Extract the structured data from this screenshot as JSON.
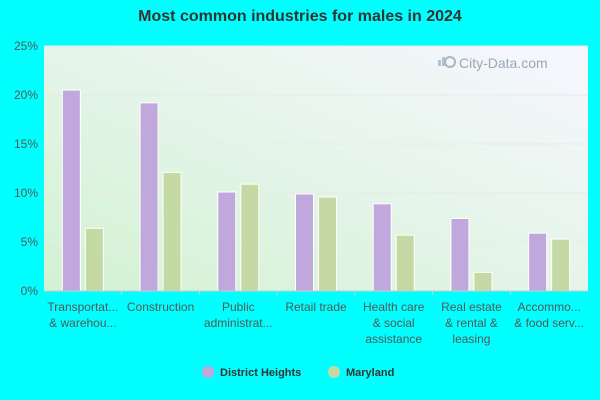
{
  "chart_data": {
    "type": "bar",
    "title": "Most common industries for males in 2024",
    "categories": [
      [
        "Transportat...",
        "& warehou..."
      ],
      [
        "Construction"
      ],
      [
        "Public",
        "administrat..."
      ],
      [
        "Retail trade"
      ],
      [
        "Health care",
        "& social",
        "assistance"
      ],
      [
        "Real estate",
        "& rental &",
        "leasing"
      ],
      [
        "Accommo...",
        "& food serv..."
      ]
    ],
    "series": [
      {
        "name": "District Heights",
        "color": "#c0a8dc",
        "values": [
          20.5,
          19.2,
          10.1,
          9.9,
          8.9,
          7.4,
          5.9
        ]
      },
      {
        "name": "Maryland",
        "color": "#c5d9a4",
        "values": [
          6.4,
          12.1,
          10.9,
          9.6,
          5.7,
          1.9,
          5.3
        ]
      }
    ],
    "ylim": [
      0,
      25
    ],
    "yticks": [
      "0%",
      "5%",
      "10%",
      "15%",
      "20%",
      "25%"
    ],
    "ytick_values": [
      0,
      5,
      10,
      15,
      20,
      25
    ],
    "grid": true,
    "legend": "bottom-center",
    "watermark": "City-Data.com",
    "watermark_icon": "magnifier-chart-icon"
  }
}
